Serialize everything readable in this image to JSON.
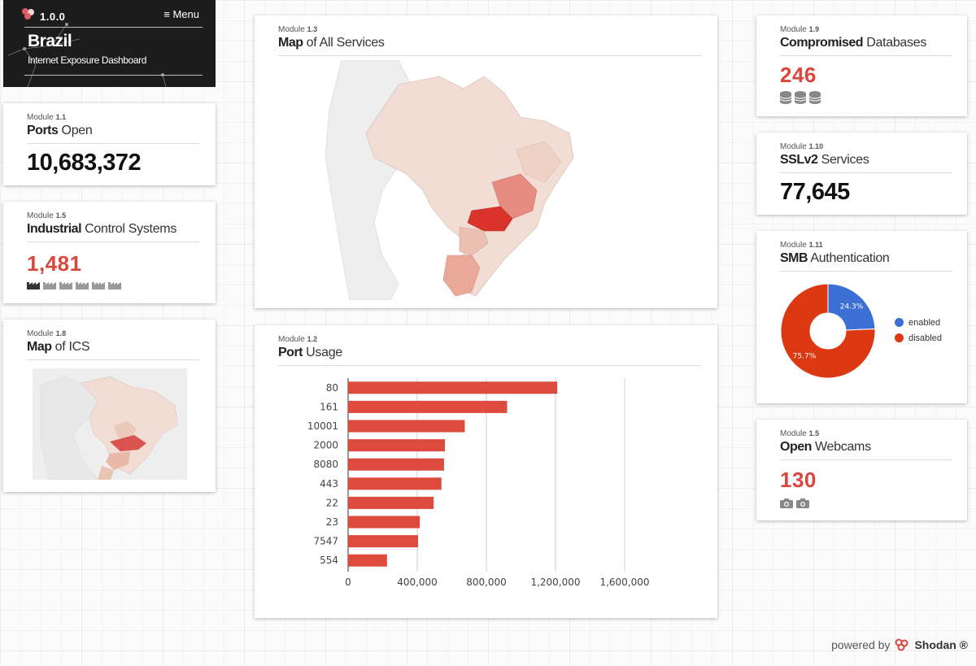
{
  "header": {
    "version": "1.0.0",
    "menu_label": "≡ Menu",
    "country": "Brazil",
    "subtitle": "Internet Exposure Dashboard"
  },
  "modules": {
    "ports_open": {
      "label_prefix": "Module ",
      "label_num": "1.1",
      "title_bold": "Ports",
      "title_rest": " Open",
      "value": "10,683,372"
    },
    "ics": {
      "label_prefix": "Module ",
      "label_num": "1.5",
      "title_bold": "Industrial",
      "title_rest": " Control Systems",
      "value": "1,481",
      "icon": "factory-icon"
    },
    "map_ics": {
      "label_prefix": "Module ",
      "label_num": "1.8",
      "title_bold": "Map",
      "title_rest": " of ICS"
    },
    "map_all": {
      "label_prefix": "Module ",
      "label_num": "1.3",
      "title_bold": "Map",
      "title_rest": " of All Services"
    },
    "port_usage": {
      "label_prefix": "Module ",
      "label_num": "1.2",
      "title_bold": "Port",
      "title_rest": " Usage"
    },
    "compromised_db": {
      "label_prefix": "Module ",
      "label_num": "1.9",
      "title_bold": "Compromised",
      "title_rest": " Databases",
      "value": "246",
      "icon": "database-icon"
    },
    "sslv2": {
      "label_prefix": "Module ",
      "label_num": "1.10",
      "title_bold": "SSLv2",
      "title_rest": " Services",
      "value": "77,645"
    },
    "smb": {
      "label_prefix": "Module ",
      "label_num": "1.11",
      "title_bold": "SMB",
      "title_rest": " Authentication"
    },
    "webcams": {
      "label_prefix": "Module ",
      "label_num": "1.5",
      "title_bold": "Open",
      "title_rest": " Webcams",
      "value": "130",
      "icon": "camera-icon"
    }
  },
  "colors": {
    "accent_red": "#d9473d",
    "bar_red": "#dc4b3e",
    "pie_blue": "#3b6fd4",
    "pie_red": "#dc3912"
  },
  "chart_data": [
    {
      "type": "bar",
      "orientation": "horizontal",
      "categories": [
        "80",
        "161",
        "10001",
        "2000",
        "8080",
        "443",
        "22",
        "23",
        "7547",
        "554"
      ],
      "values": [
        1210000,
        920000,
        675000,
        560000,
        555000,
        540000,
        495000,
        415000,
        405000,
        225000
      ],
      "x_ticks": [
        "0",
        "400,000",
        "800,000",
        "1,200,000",
        "1,600,000"
      ],
      "xlim": [
        0,
        1600000
      ],
      "grid": true
    },
    {
      "type": "pie",
      "donut": true,
      "labels": [
        "enabled",
        "disabled"
      ],
      "values": [
        24.3,
        75.7
      ],
      "slice_labels": [
        "24.3%",
        "75.7%"
      ],
      "legend": "right"
    }
  ],
  "footer": {
    "powered_by": "powered by",
    "brand": "Shodan ®"
  }
}
